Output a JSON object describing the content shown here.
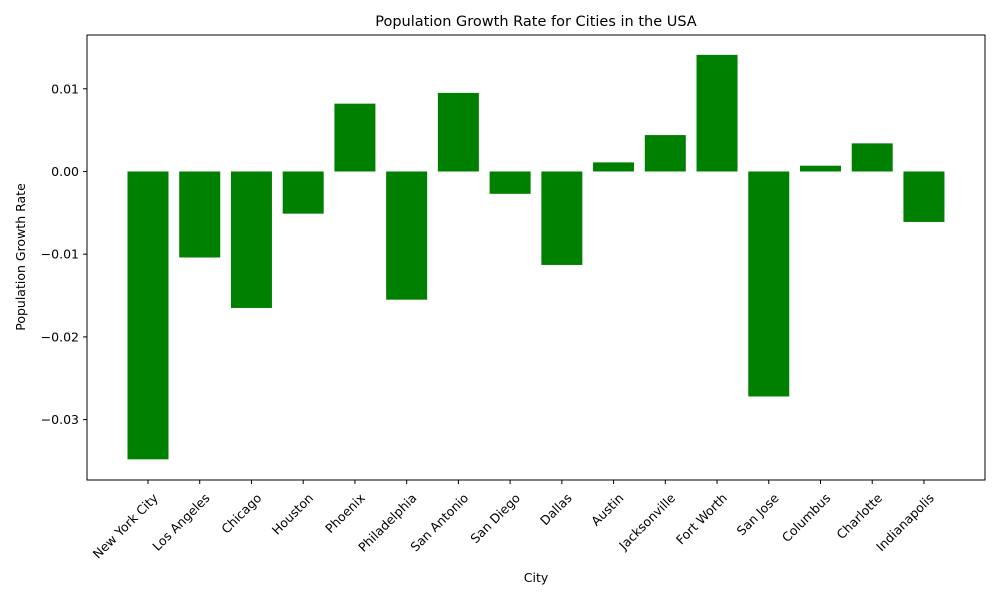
{
  "chart_data": {
    "type": "bar",
    "title": "Population Growth Rate for Cities in the USA",
    "xlabel": "City",
    "ylabel": "Population Growth Rate",
    "categories": [
      "New York City",
      "Los Angeles",
      "Chicago",
      "Houston",
      "Phoenix",
      "Philadelphia",
      "San Antonio",
      "San Diego",
      "Dallas",
      "Austin",
      "Jacksonville",
      "Fort Worth",
      "San Jose",
      "Columbus",
      "Charlotte",
      "Indianapolis"
    ],
    "values": [
      -0.0348,
      -0.0104,
      -0.0165,
      -0.0051,
      0.0082,
      -0.0155,
      0.0095,
      -0.0027,
      -0.0113,
      0.0011,
      0.0044,
      0.0141,
      -0.0272,
      0.0007,
      0.0034,
      -0.0061
    ],
    "yticks": [
      -0.03,
      -0.02,
      -0.01,
      0.0,
      0.01
    ],
    "ytick_labels": [
      "−0.03",
      "−0.02",
      "−0.01",
      "0.00",
      "0.01"
    ],
    "ylim": [
      -0.0373,
      0.0165
    ],
    "bar_color": "#008000",
    "grid": false,
    "legend": "none"
  }
}
